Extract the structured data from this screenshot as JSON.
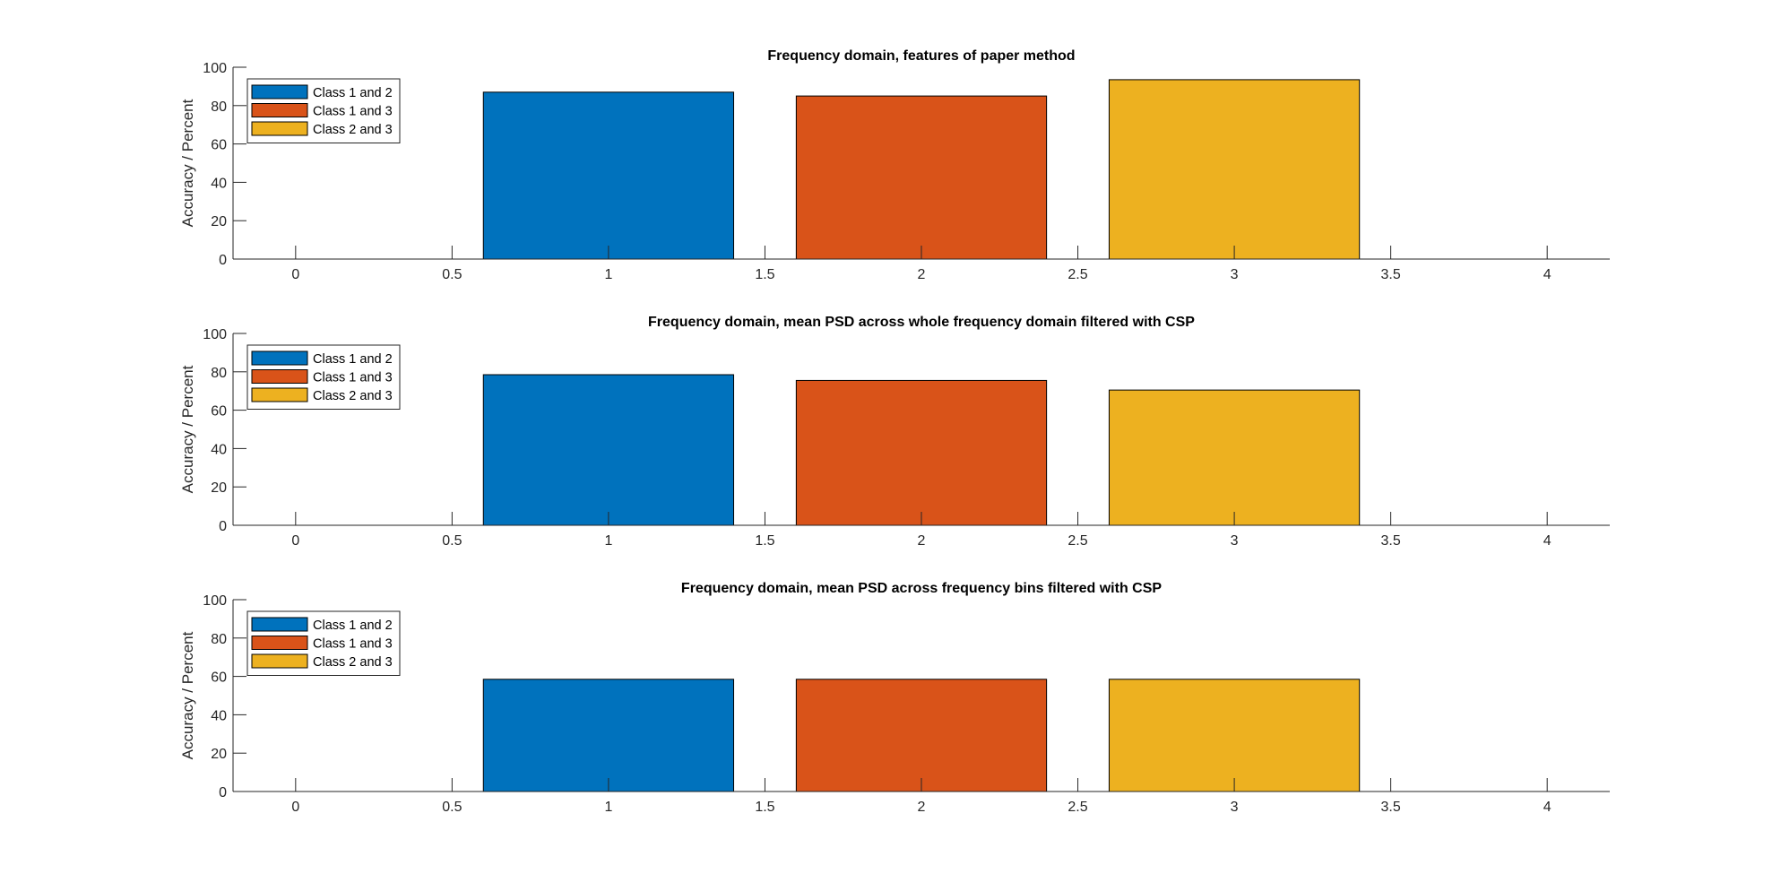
{
  "figure": {
    "background": "#ffffff"
  },
  "chart_data": [
    {
      "type": "bar",
      "title": "Frequency domain, features of paper method",
      "xlabel": "",
      "ylabel": "Accuracy / Percent",
      "xlim": [
        -0.2,
        4.2
      ],
      "ylim": [
        0,
        100
      ],
      "xticks": [
        0,
        0.5,
        1,
        1.5,
        2,
        2.5,
        3,
        3.5,
        4
      ],
      "xtick_labels": [
        "0",
        "0.5",
        "1",
        "1.5",
        "2",
        "2.5",
        "3",
        "3.5",
        "4"
      ],
      "yticks": [
        0,
        20,
        40,
        60,
        80,
        100
      ],
      "ytick_labels": [
        "0",
        "20",
        "40",
        "60",
        "80",
        "100"
      ],
      "bar_width": 0.8,
      "grid": false,
      "legend_position": "top-left",
      "series": [
        {
          "name": "Class 1 and 2",
          "x": 1,
          "value": 87,
          "color": "#0072BD"
        },
        {
          "name": "Class 1 and 3",
          "x": 2,
          "value": 85,
          "color": "#D95319"
        },
        {
          "name": "Class 2 and 3",
          "x": 3,
          "value": 93.5,
          "color": "#EDB120"
        }
      ]
    },
    {
      "type": "bar",
      "title": "Frequency domain, mean PSD across whole frequency domain filtered with CSP",
      "xlabel": "",
      "ylabel": "Accuracy / Percent",
      "xlim": [
        -0.2,
        4.2
      ],
      "ylim": [
        0,
        100
      ],
      "xticks": [
        0,
        0.5,
        1,
        1.5,
        2,
        2.5,
        3,
        3.5,
        4
      ],
      "xtick_labels": [
        "0",
        "0.5",
        "1",
        "1.5",
        "2",
        "2.5",
        "3",
        "3.5",
        "4"
      ],
      "yticks": [
        0,
        20,
        40,
        60,
        80,
        100
      ],
      "ytick_labels": [
        "0",
        "20",
        "40",
        "60",
        "80",
        "100"
      ],
      "bar_width": 0.8,
      "grid": false,
      "legend_position": "top-left",
      "series": [
        {
          "name": "Class 1 and 2",
          "x": 1,
          "value": 78.5,
          "color": "#0072BD"
        },
        {
          "name": "Class 1 and 3",
          "x": 2,
          "value": 75.5,
          "color": "#D95319"
        },
        {
          "name": "Class 2 and 3",
          "x": 3,
          "value": 70.5,
          "color": "#EDB120"
        }
      ]
    },
    {
      "type": "bar",
      "title": "Frequency domain, mean PSD across frequency bins filtered with CSP",
      "xlabel": "",
      "ylabel": "Accuracy / Percent",
      "xlim": [
        -0.2,
        4.2
      ],
      "ylim": [
        0,
        100
      ],
      "xticks": [
        0,
        0.5,
        1,
        1.5,
        2,
        2.5,
        3,
        3.5,
        4
      ],
      "xtick_labels": [
        "0",
        "0.5",
        "1",
        "1.5",
        "2",
        "2.5",
        "3",
        "3.5",
        "4"
      ],
      "yticks": [
        0,
        20,
        40,
        60,
        80,
        100
      ],
      "ytick_labels": [
        "0",
        "20",
        "40",
        "60",
        "80",
        "100"
      ],
      "bar_width": 0.8,
      "grid": false,
      "legend_position": "top-left",
      "series": [
        {
          "name": "Class 1 and 2",
          "x": 1,
          "value": 58.5,
          "color": "#0072BD"
        },
        {
          "name": "Class 1 and 3",
          "x": 2,
          "value": 58.5,
          "color": "#D95319"
        },
        {
          "name": "Class 2 and 3",
          "x": 3,
          "value": 58.5,
          "color": "#EDB120"
        }
      ]
    }
  ]
}
